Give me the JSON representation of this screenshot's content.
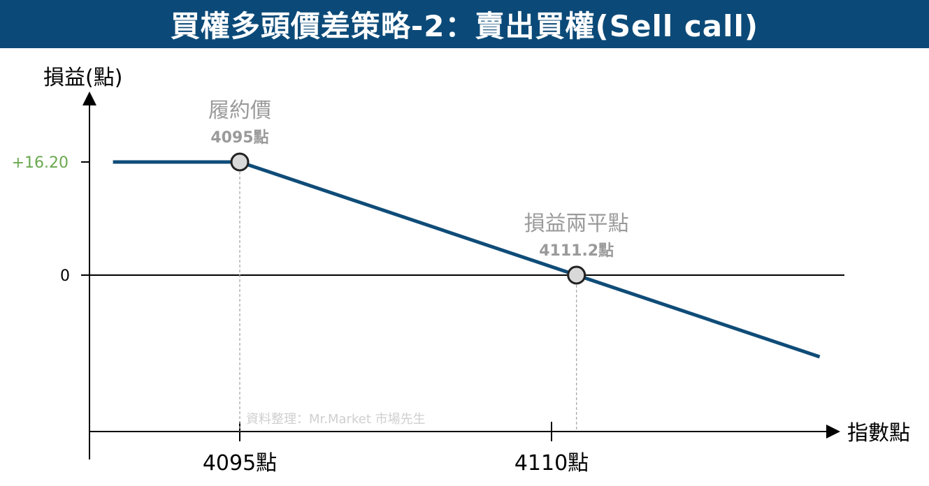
{
  "title": "買權多頭價差策略-2：賣出買權(Sell call)",
  "colors": {
    "title_bg": "#0b4a78",
    "payoff_line": "#0f4c78",
    "max_profit_label": "#6aa84f",
    "annotation_gray": "#9a9a9a",
    "point_fill": "#d9d9d9"
  },
  "chart_data": {
    "type": "line",
    "ylabel": "損益(點)",
    "xlabel": "指數點",
    "x_ticks": [
      {
        "value": 4095,
        "label": "4095點"
      },
      {
        "value": 4110,
        "label": "4110點"
      }
    ],
    "y_ticks": [
      {
        "value": 16.2,
        "label": "+16.20"
      },
      {
        "value": 0,
        "label": "0"
      }
    ],
    "series": [
      {
        "points": [
          {
            "x": 4088.9,
            "y": 16.2
          },
          {
            "x": 4095,
            "y": 16.2
          },
          {
            "x": 4111.2,
            "y": 0
          },
          {
            "x": 4122.9,
            "y": -11.7
          }
        ]
      }
    ],
    "annotations": [
      {
        "x": 4095,
        "y": 16.2,
        "title": "履約價",
        "value_label": "4095點"
      },
      {
        "x": 4111.2,
        "y": 0,
        "title": "損益兩平點",
        "value_label": "4111.2點"
      }
    ],
    "source_note": "資料整理：Mr.Market 市場先生"
  }
}
